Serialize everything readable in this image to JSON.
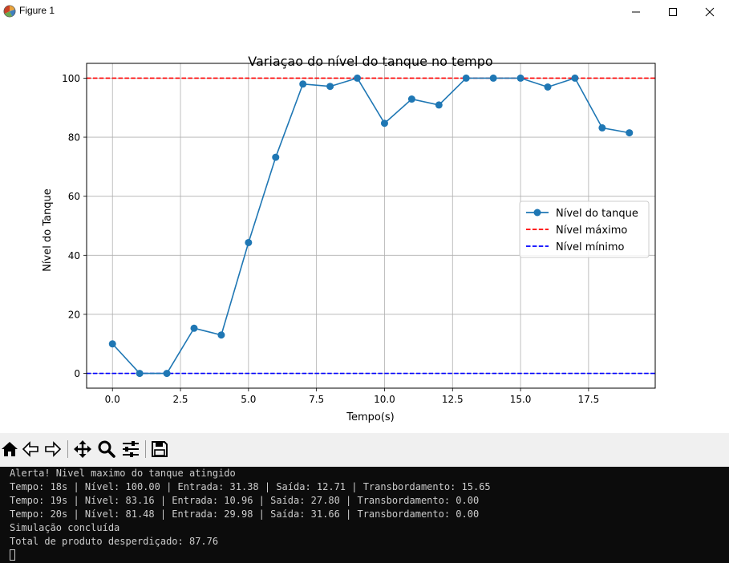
{
  "window": {
    "title": "Figure 1",
    "icon": "matplotlib-figure-icon",
    "controls": [
      "minimize-icon",
      "maximize-icon",
      "close-icon"
    ]
  },
  "chart_data": {
    "type": "line",
    "title": "Variaçao do nível do tanque no tempo",
    "xlabel": "Tempo(s)",
    "ylabel": "Nível do Tanque",
    "xlim": [
      -0.95,
      19.95
    ],
    "ylim": [
      -5,
      105
    ],
    "grid": true,
    "x_ticks": [
      0.0,
      2.5,
      5.0,
      7.5,
      10.0,
      12.5,
      15.0,
      17.5
    ],
    "x_tick_labels": [
      "0.0",
      "2.5",
      "5.0",
      "7.5",
      "10.0",
      "12.5",
      "15.0",
      "17.5"
    ],
    "y_ticks": [
      0,
      20,
      40,
      60,
      80,
      100
    ],
    "y_tick_labels": [
      "0",
      "20",
      "40",
      "60",
      "80",
      "100"
    ],
    "series": [
      {
        "name": "Nível do tanque",
        "color": "#1f77b4",
        "style": "solid-with-markers",
        "x": [
          0,
          1,
          2,
          3,
          4,
          5,
          6,
          7,
          8,
          9,
          10,
          11,
          12,
          13,
          14,
          15,
          16,
          17,
          18,
          19
        ],
        "y": [
          10,
          0,
          0,
          15.3,
          13.0,
          44.3,
          73.2,
          98.0,
          97.2,
          100,
          84.7,
          92.9,
          90.9,
          100,
          100,
          100,
          97.0,
          100,
          83.16,
          81.48
        ]
      },
      {
        "name": "Nível máximo",
        "color": "#ff0000",
        "style": "dashed",
        "y": 100
      },
      {
        "name": "Nível mínimo",
        "color": "#0000ff",
        "style": "dashed",
        "y": 0
      }
    ],
    "legend": "center-right"
  },
  "toolbar": {
    "tools": [
      {
        "name": "home-icon"
      },
      {
        "name": "back-icon"
      },
      {
        "name": "forward-icon"
      },
      {
        "name": "pan-icon"
      },
      {
        "name": "zoom-icon"
      },
      {
        "name": "configure-subplots-icon"
      },
      {
        "name": "save-icon"
      }
    ]
  },
  "console": {
    "lines": [
      "Alerta! Nivel maximo do tanque atingido",
      "Tempo: 18s | Nível: 100.00 | Entrada: 31.38 | Saída: 12.71 | Transbordamento: 15.65",
      "Tempo: 19s | Nível: 83.16 | Entrada: 10.96 | Saída: 27.80 | Transbordamento: 0.00",
      "Tempo: 20s | Nível: 81.48 | Entrada: 29.98 | Saída: 31.66 | Transbordamento: 0.00",
      "Simulação concluída",
      "Total de produto desperdiçado: 87.76"
    ]
  }
}
